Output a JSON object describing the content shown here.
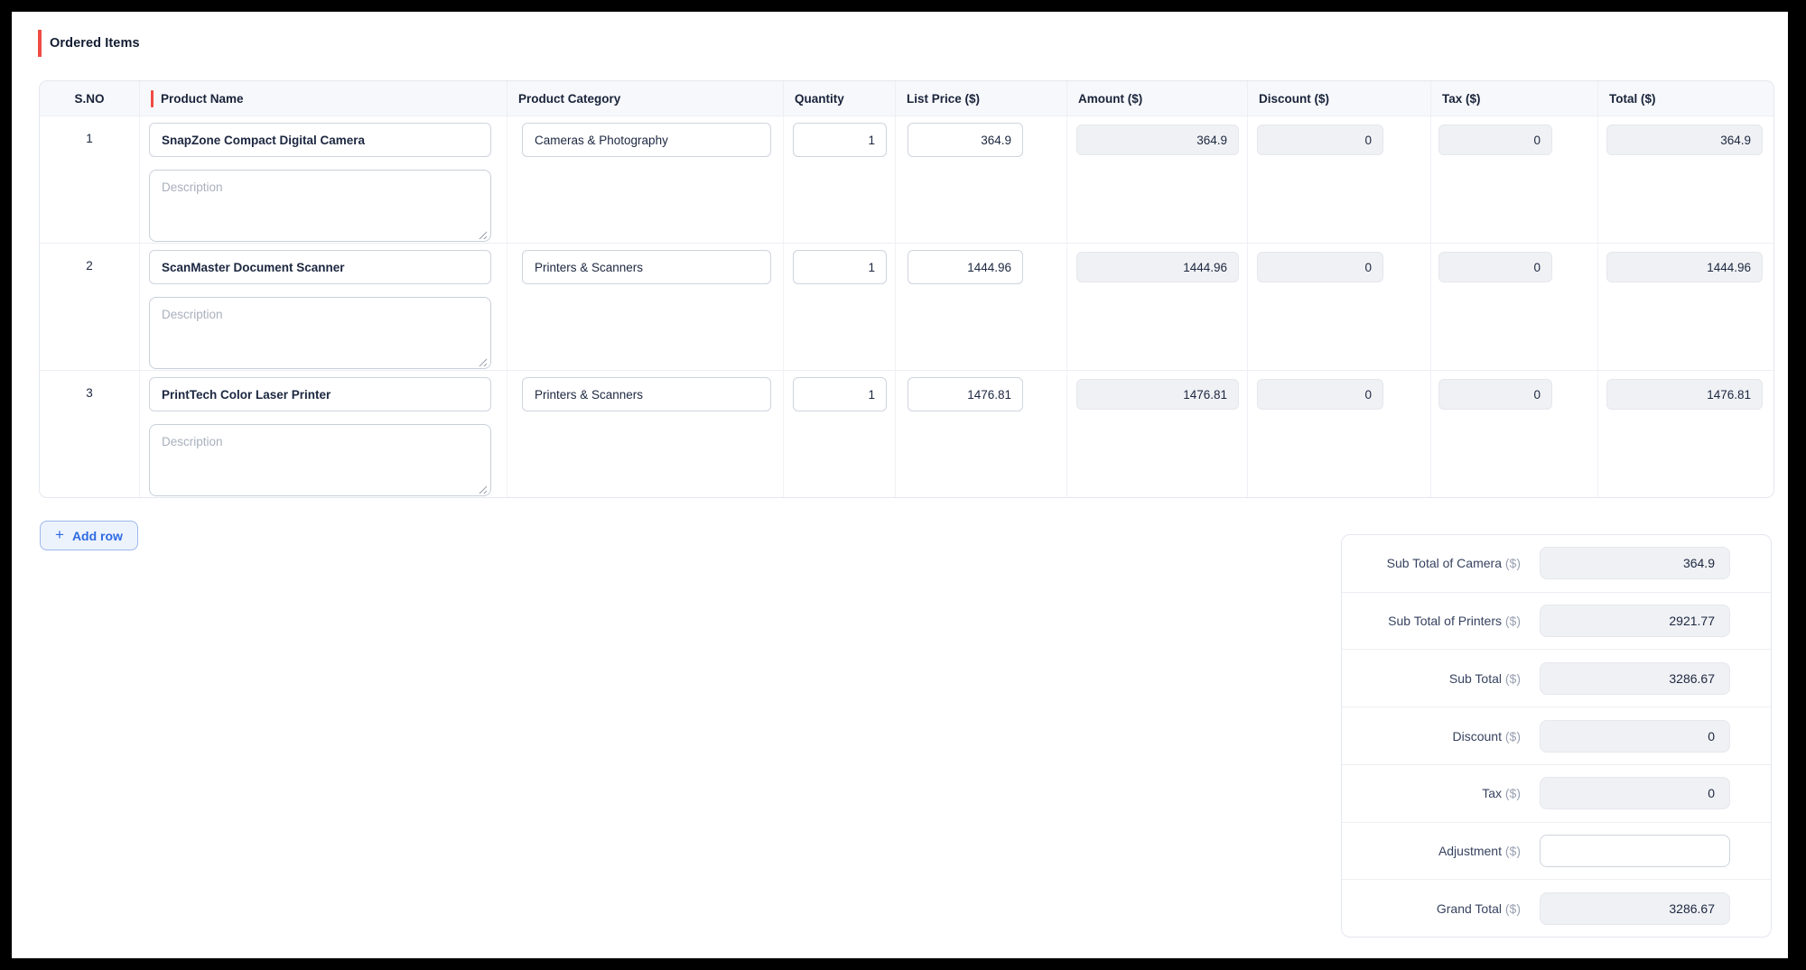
{
  "colors": {
    "accent_red": "#f04a45",
    "accent_blue": "#2e6be2",
    "readonly_bg": "#f0f1f4",
    "header_bg": "#f7f8fb",
    "frame_bg": "#000000"
  },
  "section": {
    "title": "Ordered Items"
  },
  "table": {
    "headers": [
      {
        "label": "S.NO"
      },
      {
        "label": "Product Name",
        "required": true
      },
      {
        "label": "Product Category"
      },
      {
        "label": "Quantity"
      },
      {
        "label": "List Price ($)"
      },
      {
        "label": "Amount ($)"
      },
      {
        "label": "Discount ($)"
      },
      {
        "label": "Tax ($)"
      },
      {
        "label": "Total ($)"
      }
    ],
    "description_placeholder": "Description",
    "rows": [
      {
        "sno": "1",
        "product_name": "SnapZone Compact Digital Camera",
        "category": "Cameras & Photography",
        "quantity": "1",
        "list_price": "364.9",
        "amount": "364.9",
        "discount": "0",
        "tax": "0",
        "total": "364.9"
      },
      {
        "sno": "2",
        "product_name": "ScanMaster Document Scanner",
        "category": "Printers & Scanners",
        "quantity": "1",
        "list_price": "1444.96",
        "amount": "1444.96",
        "discount": "0",
        "tax": "0",
        "total": "1444.96"
      },
      {
        "sno": "3",
        "product_name": "PrintTech Color Laser Printer",
        "category": "Printers & Scanners",
        "quantity": "1",
        "list_price": "1476.81",
        "amount": "1476.81",
        "discount": "0",
        "tax": "0",
        "total": "1476.81"
      }
    ]
  },
  "add_row": {
    "label": "Add row",
    "icon": "+"
  },
  "summary": {
    "rows": [
      {
        "label": "Sub Total of Camera",
        "suffix": "($)",
        "value": "364.9"
      },
      {
        "label": "Sub Total of Printers",
        "suffix": "($)",
        "value": "2921.77"
      },
      {
        "label": "Sub Total",
        "suffix": "($)",
        "value": "3286.67"
      },
      {
        "label": "Discount",
        "suffix": "($)",
        "value": "0"
      },
      {
        "label": "Tax",
        "suffix": "($)",
        "value": "0"
      },
      {
        "label": "Adjustment",
        "suffix": "($)",
        "value": "",
        "editable": true
      },
      {
        "label": "Grand Total",
        "suffix": "($)",
        "value": "3286.67"
      }
    ]
  }
}
